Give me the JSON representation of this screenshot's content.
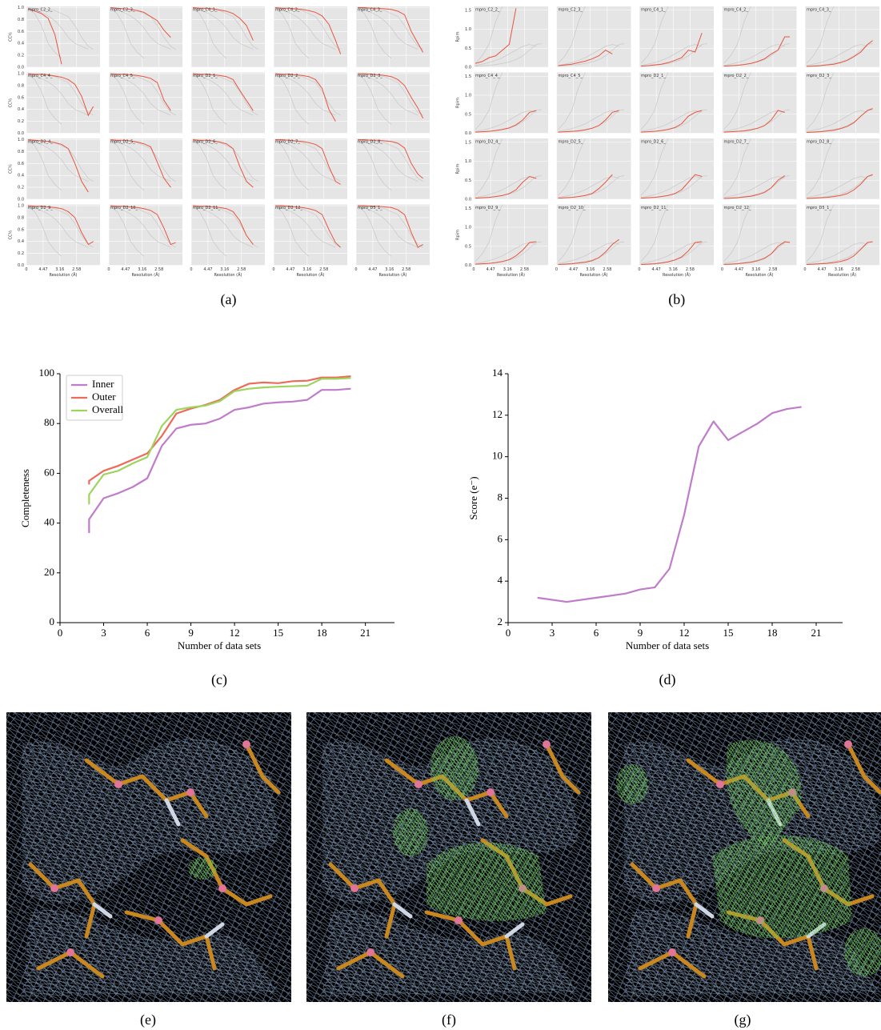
{
  "chart_data": [
    {
      "type": "small-multiples",
      "caption": "(a)",
      "ylabel": "CC½",
      "xlabel": "Resolution (Å)",
      "x": [
        0.005,
        0.025,
        0.045,
        0.065,
        0.085,
        0.105,
        0.125,
        0.145,
        0.165,
        0.185,
        0.2
      ],
      "xlim": [
        0,
        0.22
      ],
      "ylim": [
        0,
        1.02
      ],
      "xticks": [
        0,
        {
          "value": 0.05,
          "label": "4.47"
        },
        {
          "value": 0.1,
          "label": "3.16"
        },
        {
          "value": 0.15,
          "label": "2.58"
        }
      ],
      "yticks": [
        {
          "value": 0,
          "label": "0.0"
        },
        0.2,
        0.4,
        0.6,
        0.8,
        {
          "value": 1,
          "label": "1.0"
        }
      ],
      "color": "#e8553f",
      "others_color": "#c4c4c4",
      "others": [
        [
          1.0,
          0.99,
          0.98,
          0.97,
          0.95,
          0.9,
          0.85,
          0.7,
          0.5,
          0.35,
          0.3
        ],
        [
          0.99,
          0.96,
          0.92,
          0.86,
          0.78,
          0.66,
          0.5,
          0.4,
          0.35,
          0.3,
          null
        ],
        [
          0.98,
          0.9,
          0.7,
          0.4,
          0.25,
          0.15,
          null,
          null,
          null,
          null,
          null
        ]
      ],
      "panels": [
        {
          "title": "mpro_C2_2_",
          "values": [
            0.98,
            0.94,
            0.9,
            0.82,
            0.55,
            0.05,
            null,
            null,
            null,
            null,
            null
          ]
        },
        {
          "title": "mpro_C2_3_",
          "values": [
            1.0,
            0.99,
            0.98,
            0.97,
            0.95,
            0.92,
            0.85,
            0.78,
            0.62,
            0.5,
            null
          ]
        },
        {
          "title": "mpro_C4_1_",
          "values": [
            1.0,
            0.99,
            0.99,
            0.98,
            0.96,
            0.94,
            0.9,
            0.82,
            0.7,
            0.45,
            null
          ]
        },
        {
          "title": "mpro_C4_2_",
          "values": [
            1.0,
            0.99,
            0.99,
            0.98,
            0.97,
            0.95,
            0.92,
            0.86,
            0.72,
            0.45,
            0.22
          ]
        },
        {
          "title": "mpro_C4_3_",
          "values": [
            1.0,
            1.0,
            0.99,
            0.99,
            0.98,
            0.97,
            0.94,
            0.88,
            0.6,
            0.4,
            0.25
          ]
        },
        {
          "title": "mpro_C4_4_",
          "values": [
            1.0,
            0.99,
            0.99,
            0.98,
            0.96,
            0.94,
            0.9,
            0.82,
            0.62,
            0.3,
            0.45
          ]
        },
        {
          "title": "mpro_C4_5_",
          "values": [
            1.0,
            0.99,
            0.99,
            0.98,
            0.97,
            0.95,
            0.92,
            0.85,
            0.55,
            0.38,
            null
          ]
        },
        {
          "title": "mpro_D2_1_",
          "values": [
            1.0,
            0.99,
            0.99,
            0.98,
            0.97,
            0.95,
            0.9,
            0.72,
            0.55,
            0.38,
            null
          ]
        },
        {
          "title": "mpro_D2_2_",
          "values": [
            1.0,
            0.99,
            0.99,
            0.98,
            0.97,
            0.95,
            0.9,
            0.75,
            0.4,
            0.2,
            null
          ]
        },
        {
          "title": "mpro_D2_3_",
          "values": [
            1.0,
            1.0,
            0.99,
            0.98,
            0.97,
            0.95,
            0.9,
            0.8,
            0.6,
            0.42,
            0.25
          ]
        },
        {
          "title": "mpro_D2_4_",
          "values": [
            1.0,
            0.99,
            0.98,
            0.97,
            0.95,
            0.92,
            0.85,
            0.6,
            0.3,
            0.12,
            null
          ]
        },
        {
          "title": "mpro_D2_5_",
          "values": [
            1.0,
            0.99,
            0.99,
            0.98,
            0.96,
            0.93,
            0.88,
            0.62,
            0.35,
            0.2,
            null
          ]
        },
        {
          "title": "mpro_D2_6_",
          "values": [
            1.0,
            0.99,
            0.99,
            0.98,
            0.96,
            0.93,
            0.85,
            0.55,
            0.3,
            0.2,
            null
          ]
        },
        {
          "title": "mpro_D2_7_",
          "values": [
            1.0,
            1.0,
            0.99,
            0.98,
            0.97,
            0.95,
            0.92,
            0.85,
            0.55,
            0.3,
            0.25
          ]
        },
        {
          "title": "mpro_D2_8_",
          "values": [
            1.0,
            1.0,
            0.99,
            0.99,
            0.98,
            0.97,
            0.94,
            0.86,
            0.6,
            0.42,
            0.35
          ]
        },
        {
          "title": "mpro_D2_9_",
          "values": [
            1.0,
            0.99,
            0.99,
            0.98,
            0.97,
            0.95,
            0.9,
            0.8,
            0.55,
            0.35,
            0.4
          ]
        },
        {
          "title": "mpro_D2_10_",
          "values": [
            1.0,
            0.99,
            0.99,
            0.98,
            0.97,
            0.95,
            0.92,
            0.85,
            0.62,
            0.35,
            0.38
          ]
        },
        {
          "title": "mpro_D2_11_",
          "values": [
            1.0,
            0.99,
            0.99,
            0.98,
            0.97,
            0.95,
            0.9,
            0.75,
            0.5,
            0.35,
            null
          ]
        },
        {
          "title": "mpro_D2_12_",
          "values": [
            1.0,
            1.0,
            0.99,
            0.98,
            0.97,
            0.95,
            0.92,
            0.85,
            0.6,
            0.38,
            0.3
          ]
        },
        {
          "title": "mpro_D5_1_",
          "values": [
            1.0,
            1.0,
            0.99,
            0.99,
            0.98,
            0.97,
            0.93,
            0.85,
            0.55,
            0.3,
            0.35
          ]
        }
      ]
    },
    {
      "type": "small-multiples",
      "caption": "(b)",
      "ylabel": "Rpim",
      "xlabel": "Resolution (Å)",
      "x": [
        0.005,
        0.025,
        0.045,
        0.065,
        0.085,
        0.105,
        0.125,
        0.145,
        0.165,
        0.185,
        0.2
      ],
      "xlim": [
        0,
        0.22
      ],
      "ylim": [
        0,
        1.6
      ],
      "xticks": [
        0,
        {
          "value": 0.05,
          "label": "4.47"
        },
        {
          "value": 0.1,
          "label": "3.16"
        },
        {
          "value": 0.15,
          "label": "2.58"
        }
      ],
      "yticks": [
        {
          "value": 0,
          "label": "0.0"
        },
        0.5,
        {
          "value": 1,
          "label": "1.0"
        },
        1.5
      ],
      "color": "#e8553f",
      "others_color": "#c4c4c4",
      "others": [
        [
          0.03,
          0.04,
          0.05,
          0.07,
          0.1,
          0.14,
          0.2,
          0.3,
          0.45,
          0.6,
          0.62
        ],
        [
          0.05,
          0.08,
          0.12,
          0.18,
          0.25,
          0.35,
          0.45,
          0.55,
          0.6,
          0.55,
          null
        ],
        [
          0.1,
          0.3,
          0.6,
          1.2,
          1.6,
          null,
          null,
          null,
          null,
          null,
          null
        ]
      ],
      "panels": [
        {
          "title": "mpro_C2_2_",
          "values": [
            0.1,
            0.15,
            0.25,
            0.3,
            0.45,
            0.6,
            1.55,
            null,
            null,
            null,
            null
          ]
        },
        {
          "title": "mpro_C2_3_",
          "values": [
            0.04,
            0.06,
            0.08,
            0.12,
            0.16,
            0.22,
            0.3,
            0.45,
            0.35,
            null,
            null
          ]
        },
        {
          "title": "mpro_C4_1_",
          "values": [
            0.03,
            0.04,
            0.06,
            0.08,
            0.12,
            0.18,
            0.25,
            0.45,
            0.4,
            0.9,
            null
          ]
        },
        {
          "title": "mpro_C4_2_",
          "values": [
            0.03,
            0.04,
            0.05,
            0.07,
            0.1,
            0.15,
            0.22,
            0.35,
            0.45,
            0.8,
            0.8
          ]
        },
        {
          "title": "mpro_C4_3_",
          "values": [
            0.02,
            0.03,
            0.04,
            0.06,
            0.08,
            0.12,
            0.18,
            0.28,
            0.4,
            0.6,
            0.7
          ]
        },
        {
          "title": "mpro_C4_4_",
          "values": [
            0.03,
            0.04,
            0.05,
            0.07,
            0.1,
            0.14,
            0.22,
            0.35,
            0.55,
            0.6,
            null
          ]
        },
        {
          "title": "mpro_C4_5_",
          "values": [
            0.03,
            0.04,
            0.05,
            0.06,
            0.09,
            0.13,
            0.2,
            0.35,
            0.55,
            0.6,
            null
          ]
        },
        {
          "title": "mpro_D2_1_",
          "values": [
            0.03,
            0.04,
            0.05,
            0.07,
            0.1,
            0.15,
            0.25,
            0.45,
            0.55,
            0.6,
            null
          ]
        },
        {
          "title": "mpro_D2_2_",
          "values": [
            0.03,
            0.04,
            0.05,
            0.06,
            0.09,
            0.13,
            0.2,
            0.35,
            0.6,
            0.55,
            null
          ]
        },
        {
          "title": "mpro_D2_3_",
          "values": [
            0.02,
            0.03,
            0.04,
            0.06,
            0.08,
            0.12,
            0.18,
            0.28,
            0.45,
            0.6,
            0.65
          ]
        },
        {
          "title": "mpro_D2_4_",
          "values": [
            0.03,
            0.04,
            0.05,
            0.07,
            0.1,
            0.15,
            0.25,
            0.45,
            0.6,
            0.55,
            null
          ]
        },
        {
          "title": "mpro_D2_5_",
          "values": [
            0.03,
            0.04,
            0.05,
            0.07,
            0.1,
            0.15,
            0.28,
            0.45,
            0.65,
            null,
            null
          ]
        },
        {
          "title": "mpro_D2_6_",
          "values": [
            0.03,
            0.04,
            0.05,
            0.07,
            0.1,
            0.15,
            0.25,
            0.45,
            0.65,
            0.6,
            null
          ]
        },
        {
          "title": "mpro_D2_7_",
          "values": [
            0.02,
            0.03,
            0.04,
            0.06,
            0.08,
            0.12,
            0.18,
            0.3,
            0.5,
            0.62,
            null
          ]
        },
        {
          "title": "mpro_D2_8_",
          "values": [
            0.02,
            0.03,
            0.04,
            0.05,
            0.07,
            0.1,
            0.15,
            0.25,
            0.4,
            0.6,
            0.65
          ]
        },
        {
          "title": "mpro_D2_9_",
          "values": [
            0.03,
            0.04,
            0.05,
            0.07,
            0.1,
            0.15,
            0.25,
            0.4,
            0.6,
            0.62,
            null
          ]
        },
        {
          "title": "mpro_D2_10_",
          "values": [
            0.02,
            0.03,
            0.04,
            0.06,
            0.08,
            0.12,
            0.2,
            0.35,
            0.55,
            0.68,
            null
          ]
        },
        {
          "title": "mpro_D2_11_",
          "values": [
            0.02,
            0.03,
            0.04,
            0.06,
            0.09,
            0.14,
            0.22,
            0.38,
            0.6,
            0.62,
            null
          ]
        },
        {
          "title": "mpro_D2_12_",
          "values": [
            0.02,
            0.03,
            0.04,
            0.06,
            0.08,
            0.12,
            0.18,
            0.3,
            0.5,
            0.62,
            0.6
          ]
        },
        {
          "title": "mpro_D5_1_",
          "values": [
            0.02,
            0.03,
            0.04,
            0.05,
            0.07,
            0.1,
            0.15,
            0.25,
            0.42,
            0.6,
            0.62
          ]
        }
      ]
    },
    {
      "type": "line",
      "caption": "(c)",
      "xlabel": "Number of data sets",
      "ylabel": "Completeness",
      "x": [
        2,
        2,
        3,
        4,
        5,
        6,
        7,
        8,
        9,
        10,
        11,
        12,
        13,
        14,
        15,
        16,
        17,
        18,
        19,
        20
      ],
      "xlim": [
        0,
        23
      ],
      "ylim": [
        0,
        100
      ],
      "xticks": [
        0,
        3,
        6,
        9,
        12,
        15,
        18,
        21
      ],
      "yticks": [
        0,
        20,
        40,
        60,
        80,
        100
      ],
      "legend": "upper left",
      "series": [
        {
          "name": "Inner",
          "color": "#c07ccb",
          "values": [
            36,
            41.5,
            50,
            52,
            54.5,
            58,
            71,
            78,
            79.5,
            80,
            82,
            85.5,
            86.5,
            88,
            88.5,
            88.8,
            89.5,
            93.5,
            93.5,
            94
          ]
        },
        {
          "name": "Outer",
          "color": "#ee6a5a",
          "values": [
            55.5,
            57,
            61,
            63,
            65.5,
            68,
            75,
            84,
            86,
            87.5,
            89.5,
            93.5,
            96,
            96.5,
            96.2,
            97,
            97.2,
            98.5,
            98.5,
            99
          ]
        },
        {
          "name": "Overall",
          "color": "#9ed45e",
          "values": [
            47.5,
            51.5,
            59.5,
            61,
            64,
            66.5,
            79,
            85.5,
            86.5,
            87.2,
            89,
            93,
            94,
            94.5,
            94.8,
            95,
            95.2,
            98,
            98,
            98.3
          ]
        }
      ]
    },
    {
      "type": "line",
      "caption": "(d)",
      "xlabel": "Number of data sets",
      "ylabel": "Score (e⁻)",
      "x": [
        2,
        4,
        6,
        8,
        9,
        10,
        11,
        12,
        13,
        14,
        15,
        17,
        18,
        19,
        20
      ],
      "xlim": [
        0,
        22.8
      ],
      "ylim": [
        2,
        14
      ],
      "xticks": [
        0,
        3,
        6,
        9,
        12,
        15,
        18,
        21
      ],
      "yticks": [
        2,
        4,
        6,
        8,
        10,
        12,
        14
      ],
      "series": [
        {
          "color": "#c07ccb",
          "values": [
            3.2,
            3.0,
            3.2,
            3.4,
            3.6,
            3.7,
            4.6,
            7.2,
            10.5,
            11.7,
            10.8,
            11.6,
            12.1,
            12.3,
            12.4
          ]
        }
      ]
    }
  ],
  "images": {
    "captions": [
      "(e)",
      "(f)",
      "(g)"
    ]
  }
}
